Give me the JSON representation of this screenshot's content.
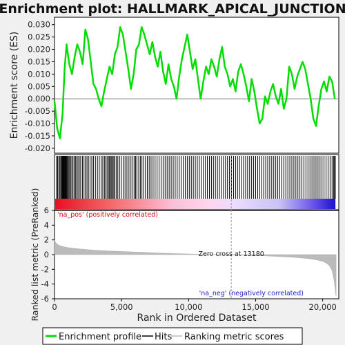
{
  "chart_data": {
    "type": "line",
    "title": "Enrichment plot: HALLMARK_APICAL_JUNCTION",
    "es_panel": {
      "ylabel": "Enrichment score (ES)",
      "ylim": [
        -0.022,
        0.033
      ],
      "yticks": [
        "-0.020",
        "-0.015",
        "-0.010",
        "-0.005",
        "0.000",
        "0.005",
        "0.010",
        "0.015",
        "0.020",
        "0.025",
        "0.030"
      ],
      "series": [
        {
          "name": "Enrichment profile",
          "color": "#00dd00",
          "x": [
            0,
            200,
            400,
            600,
            750,
            900,
            1100,
            1300,
            1500,
            1700,
            1900,
            2100,
            2300,
            2500,
            2700,
            2900,
            3100,
            3300,
            3500,
            3700,
            3900,
            4100,
            4300,
            4500,
            4700,
            4900,
            5100,
            5300,
            5500,
            5700,
            5900,
            6100,
            6300,
            6500,
            6700,
            6900,
            7100,
            7300,
            7500,
            7700,
            7900,
            8100,
            8300,
            8500,
            8700,
            8900,
            9100,
            9300,
            9500,
            9700,
            9900,
            10100,
            10300,
            10500,
            10700,
            10900,
            11100,
            11300,
            11500,
            11700,
            11900,
            12100,
            12300,
            12500,
            12700,
            12900,
            13100,
            13300,
            13500,
            13700,
            13900,
            14100,
            14300,
            14500,
            14700,
            14900,
            15100,
            15300,
            15500,
            15700,
            15900,
            16100,
            16300,
            16500,
            16700,
            16900,
            17100,
            17300,
            17500,
            17700,
            17900,
            18100,
            18300,
            18500,
            18700,
            18900,
            19100,
            19300,
            19500,
            19700,
            19900,
            20100,
            20300,
            20500,
            20700,
            20900
          ],
          "y": [
            -0.001,
            -0.012,
            -0.016,
            -0.006,
            0.012,
            0.022,
            0.014,
            0.01,
            0.017,
            0.022,
            0.019,
            0.014,
            0.028,
            0.024,
            0.015,
            0.006,
            0.004,
            0.0,
            -0.003,
            0.003,
            0.008,
            0.013,
            0.01,
            0.018,
            0.021,
            0.029,
            0.026,
            0.019,
            0.012,
            0.004,
            0.01,
            0.02,
            0.022,
            0.029,
            0.026,
            0.022,
            0.018,
            0.023,
            0.017,
            0.013,
            0.019,
            0.011,
            0.006,
            0.014,
            0.008,
            0.005,
            0.0,
            0.009,
            0.016,
            0.021,
            0.026,
            0.019,
            0.012,
            0.016,
            0.008,
            0.0,
            0.007,
            0.013,
            0.01,
            0.016,
            0.013,
            0.009,
            0.016,
            0.021,
            0.013,
            0.01,
            0.005,
            0.008,
            0.003,
            0.011,
            0.014,
            0.01,
            0.005,
            -0.001,
            0.008,
            0.003,
            -0.004,
            -0.01,
            -0.008,
            0.001,
            -0.002,
            0.003,
            0.006,
            0.001,
            -0.002,
            0.004,
            -0.004,
            0.0,
            0.013,
            0.01,
            0.004,
            0.009,
            0.012,
            0.015,
            0.012,
            0.006,
            0.0,
            -0.008,
            -0.011,
            -0.003,
            0.004,
            0.007,
            0.003,
            0.009,
            0.007,
            0.0
          ]
        }
      ]
    },
    "hits_panel": {
      "name": "Hits",
      "positions": [
        150,
        230,
        320,
        400,
        470,
        540,
        580,
        620,
        660,
        700,
        740,
        780,
        820,
        870,
        920,
        980,
        1040,
        1120,
        1200,
        1290,
        1380,
        1470,
        1560,
        1650,
        1750,
        1850,
        1950,
        2080,
        2200,
        2300,
        2420,
        2530,
        2650,
        2780,
        2900,
        3050,
        3200,
        3340,
        3480,
        3600,
        3720,
        3820,
        3920,
        4020,
        4100,
        4180,
        4260,
        4340,
        4420,
        4500,
        4600,
        4720,
        4850,
        4980,
        5120,
        5260,
        5400,
        5550,
        5700,
        5850,
        5950,
        6050,
        6150,
        6280,
        6400,
        6520,
        6650,
        6780,
        6920,
        7060,
        7200,
        7350,
        7500,
        7650,
        7800,
        7950,
        8100,
        8250,
        8400,
        8550,
        8700,
        8850,
        9000,
        9150,
        9300,
        9450,
        9600,
        9750,
        9900,
        10050,
        10200,
        10350,
        10500,
        10650,
        10800,
        10950,
        11100,
        11250,
        11400,
        11550,
        11700,
        11850,
        12000,
        12150,
        12300,
        12450,
        12600,
        12750,
        12900,
        13050,
        13200,
        13350,
        13500,
        13650,
        13800,
        13950,
        14100,
        14250,
        14400,
        14550,
        14700,
        14850,
        15000,
        15150,
        15300,
        15450,
        15600,
        15750,
        15900,
        16050,
        16200,
        16350,
        16500,
        16650,
        16800,
        16950,
        17100,
        17250,
        17400,
        17550,
        17700,
        17850,
        18000,
        18150,
        18300,
        18450,
        18600,
        18750,
        18900,
        19050,
        19200,
        19350,
        19500,
        19650,
        19800,
        19950,
        20100,
        20250,
        20400,
        20550,
        20700,
        20820,
        20880,
        20940
      ]
    },
    "metric_panel": {
      "ylabel": "Ranked list metric (PreRanked)",
      "xlabel": "Rank in Ordered Dataset",
      "xlim": [
        0,
        21200
      ],
      "ylim": [
        -6,
        6
      ],
      "xticks": [
        "0",
        "5,000",
        "10,000",
        "15,000",
        "20,000"
      ],
      "yticks": [
        "-6",
        "-4",
        "-2",
        "0",
        "2",
        "4",
        "6"
      ],
      "zero_cross_label": "Zero cross at 13180",
      "zero_cross_rank": 13180,
      "pos_label": "'na_pos' (positively correlated)",
      "neg_label": "'na_neg' (negatively correlated)",
      "metric_x": [
        0,
        100,
        300,
        600,
        1000,
        2000,
        3000,
        4000,
        5000,
        6000,
        7000,
        8000,
        9000,
        10000,
        11000,
        12000,
        13180,
        14000,
        15000,
        16000,
        17000,
        18000,
        19000,
        19500,
        20000,
        20300,
        20500,
        20700,
        20850,
        20950,
        21000
      ],
      "metric_y": [
        2.0,
        1.6,
        1.3,
        1.1,
        0.95,
        0.75,
        0.6,
        0.5,
        0.42,
        0.35,
        0.28,
        0.2,
        0.14,
        0.09,
        0.05,
        0.02,
        0.0,
        -0.06,
        -0.12,
        -0.2,
        -0.28,
        -0.38,
        -0.55,
        -0.7,
        -0.9,
        -1.2,
        -1.5,
        -2.2,
        -3.5,
        -5.0,
        -5.6
      ]
    },
    "legend": [
      {
        "label": "Enrichment profile",
        "color": "#00dd00"
      },
      {
        "label": "Hits",
        "color": "#000000"
      },
      {
        "label": "Ranking metric scores",
        "color": "#bbbbbb"
      }
    ]
  }
}
